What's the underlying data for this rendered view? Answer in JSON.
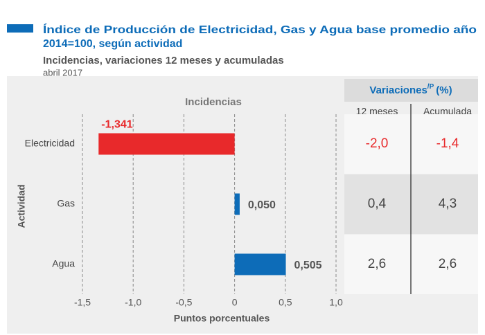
{
  "chart_data": {
    "type": "hbar",
    "title": [
      "Índice de Producción de Electricidad, Gas y Agua base promedio año",
      "2014=100, según actividad"
    ],
    "subtitle": "Incidencias, variaciones 12 meses y acumuladas",
    "date": "abril 2017",
    "plot_title": "Incidencias",
    "xlabel": "Puntos porcentuales",
    "ylabel": "Actividad",
    "categories": [
      "Electricidad",
      "Gas",
      "Agua"
    ],
    "values": [
      -1.341,
      0.05,
      0.505
    ],
    "value_labels": [
      "-1,341",
      "0,050",
      "0,505"
    ],
    "colors": [
      "#e8292b",
      "#0d6cb8",
      "#0d6cb8"
    ],
    "xlim": [
      -1.5,
      1.0
    ],
    "xticks": [
      {
        "value": -1.5,
        "label": "-1,5"
      },
      {
        "value": -1.0,
        "label": "-1,0"
      },
      {
        "value": -0.5,
        "label": "-0,5"
      },
      0,
      {
        "value": 0.5,
        "label": "0,5"
      },
      {
        "value": 1.0,
        "label": "1,0"
      }
    ],
    "grid": true
  },
  "table": {
    "title": "Variaciones",
    "title_sup": "/P",
    "title_unit": "(%)",
    "columns": [
      "12 meses",
      "Acumulada"
    ],
    "rows": [
      [
        "-2,0",
        "-1,4"
      ],
      [
        "0,4",
        "4,3"
      ],
      [
        "2,6",
        "2,6"
      ]
    ],
    "row_colors": [
      "#e8292b",
      "#444444",
      "#444444"
    ]
  }
}
